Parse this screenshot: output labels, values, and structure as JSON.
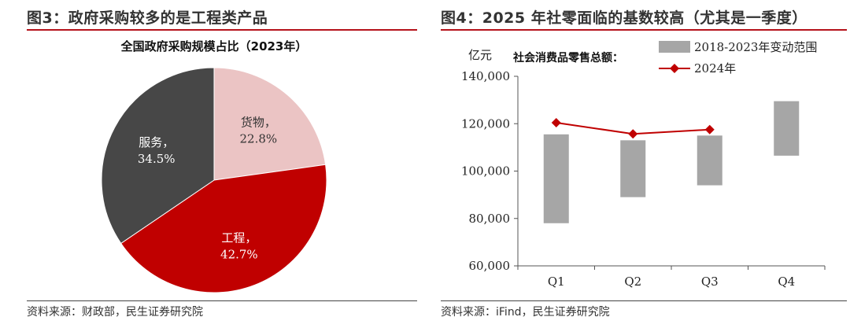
{
  "left_panel": {
    "figure_title": "图3：政府采购较多的是工程类产品",
    "source": "资料来源：财政部，民生证券研究院"
  },
  "right_panel": {
    "figure_title": "图4：2025 年社零面临的基数较高（尤其是一季度）",
    "source": "资料来源：iFind，民生证券研究院"
  },
  "chart_data": [
    {
      "type": "pie",
      "title": "全国政府采购规模占比（2023年）",
      "slices": [
        {
          "label": "货物，",
          "value": 22.8,
          "value_text": "22.8%",
          "color": "#ebc4c4",
          "label_color": "#333333"
        },
        {
          "label": "工程，",
          "value": 42.7,
          "value_text": "42.7%",
          "color": "#c00000",
          "label_color": "#ffffff"
        },
        {
          "label": "服务，",
          "value": 34.5,
          "value_text": "34.5%",
          "color": "#474747",
          "label_color": "#ffffff"
        }
      ]
    },
    {
      "type": "bar",
      "title": "社会消费品零售总额：",
      "unit_label": "亿元",
      "categories": [
        "Q1",
        "Q2",
        "Q3",
        "Q4"
      ],
      "ylim": [
        60000,
        140000
      ],
      "yticks": [
        60000,
        80000,
        100000,
        120000,
        140000
      ],
      "ytick_labels": [
        "60,000",
        "80,000",
        "100,000",
        "120,000",
        "140,000"
      ],
      "grid": false,
      "legend_position": "top-right",
      "range_series": {
        "name": "2018-2023年变动范围",
        "color": "#a6a6a6",
        "low": [
          78000,
          89000,
          94000,
          106500
        ],
        "high": [
          115500,
          113000,
          115000,
          129500
        ]
      },
      "line_series": {
        "name": "2024年",
        "color": "#c00000",
        "values": [
          120400,
          115700,
          117500,
          null
        ]
      }
    }
  ]
}
